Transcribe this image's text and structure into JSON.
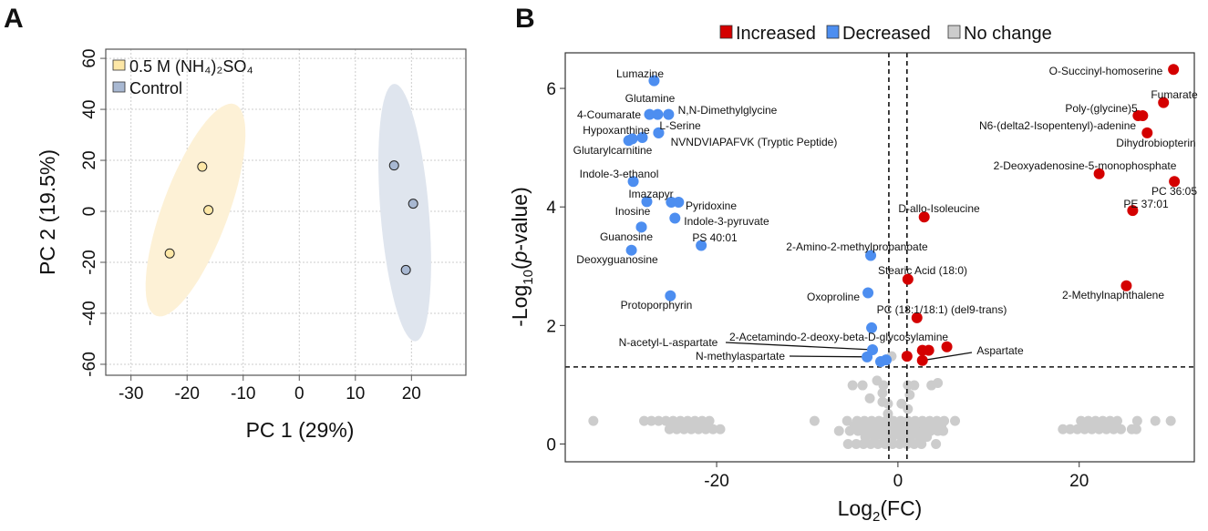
{
  "panels": {
    "a": "A",
    "b": "B"
  },
  "chart_data": [
    {
      "type": "scatter",
      "title": "",
      "xlabel": "PC 1 (29%)",
      "ylabel": "PC 2 (19.5%)",
      "xlim": [
        -34.5,
        29.7
      ],
      "ylim": [
        -64.3,
        63.6
      ],
      "xticks": [
        "-30",
        "-20",
        "-10",
        "0",
        "10",
        "20"
      ],
      "yticks": [
        "-60",
        "-40",
        "-20",
        "0",
        "20",
        "40",
        "60"
      ],
      "grid": true,
      "legend_position": "top-left",
      "series": [
        {
          "name": "0.5 M (NH₄)₂SO₄",
          "color": "#fde7a6",
          "ellipse_color": "#fdf1d6",
          "points": [
            [
              -17.3,
              17.5
            ],
            [
              -16.2,
              0.5
            ],
            [
              -23.1,
              -16.5
            ]
          ],
          "ellipse": {
            "center": [
              -18.5,
              0.5
            ],
            "major": [
              7.0,
              41.5
            ],
            "minor": [
              5.5,
              -4.5
            ]
          }
        },
        {
          "name": "Control",
          "color": "#a8b8d2",
          "ellipse_color": "#dfe5ee",
          "points": [
            [
              16.9,
              18.0
            ],
            [
              20.3,
              3.0
            ],
            [
              19.0,
              -23.0
            ]
          ],
          "ellipse": {
            "center": [
              18.8,
              -0.5
            ],
            "major": [
              -1.9,
              50.5
            ],
            "minor": [
              4.3,
              0.8
            ]
          }
        }
      ]
    },
    {
      "type": "scatter",
      "title": "",
      "xlabel_parts": [
        "Log",
        "2",
        "(FC)"
      ],
      "ylabel_parts": [
        "-Log",
        "10",
        "(",
        "p",
        "-value)"
      ],
      "xlim": [
        -36.7,
        32.7
      ],
      "ylim": [
        -0.3,
        6.6
      ],
      "xticks": [
        "-20",
        "0",
        "20"
      ],
      "yticks": [
        "0",
        "2",
        "4",
        "6"
      ],
      "grid": false,
      "thresholds": {
        "fc": [
          -1,
          1
        ],
        "neg_log10_p": 1.3
      },
      "legend_position": "top",
      "legend": [
        {
          "name": "Increased",
          "color": "#d40000"
        },
        {
          "name": "Decreased",
          "color": "#4d8ef0"
        },
        {
          "name": "No change",
          "color": "#cccccc"
        }
      ],
      "decreased": [
        {
          "x": -26.9,
          "y": 6.13,
          "label": "Lumazine"
        },
        {
          "x": -27.4,
          "y": 5.56,
          "label": "4-Coumarate"
        },
        {
          "x": -26.5,
          "y": 5.56,
          "label": "Glutamine"
        },
        {
          "x": -25.3,
          "y": 5.56,
          "label": "N,N-Dimethylglycine"
        },
        {
          "x": -26.4,
          "y": 5.25,
          "label": "L-Serine"
        },
        {
          "x": -28.2,
          "y": 5.17,
          "label": "Hypoxanthine"
        },
        {
          "x": -29.7,
          "y": 5.12,
          "label": "Glutarylcarnitine"
        },
        {
          "x": -29.3,
          "y": 5.15,
          "label": ""
        },
        {
          "x": -26.4,
          "y": 5.25,
          "label": "NVNDVIAPAFVK (Tryptic Peptide)"
        },
        {
          "x": -29.2,
          "y": 4.43,
          "label": "Indole-3-ethanol"
        },
        {
          "x": -27.7,
          "y": 4.09,
          "label": "Imazapyr"
        },
        {
          "x": -25.0,
          "y": 4.08,
          "label": ""
        },
        {
          "x": -24.2,
          "y": 4.08,
          "label": "Pyridoxine"
        },
        {
          "x": -24.6,
          "y": 3.81,
          "label": "Indole-3-pyruvate"
        },
        {
          "x": -28.3,
          "y": 3.66,
          "label": "Inosine"
        },
        {
          "x": -28.3,
          "y": 3.66,
          "label": "Guanosine"
        },
        {
          "x": -29.4,
          "y": 3.27,
          "label": "Deoxyguanosine"
        },
        {
          "x": -21.7,
          "y": 3.35,
          "label": "PS 40:01"
        },
        {
          "x": -25.1,
          "y": 2.5,
          "label": "Protoporphyrin"
        },
        {
          "x": -3.0,
          "y": 3.18,
          "label": "2-Amino-2-methylpropanoate"
        },
        {
          "x": -3.3,
          "y": 2.55,
          "label": "Oxoproline"
        },
        {
          "x": -2.9,
          "y": 1.96,
          "label": "2-Acetamindo-2-deoxy-beta-D-glycosylamine"
        },
        {
          "x": -2.8,
          "y": 1.59,
          "label": "N-acetyl-L-aspartate"
        },
        {
          "x": -3.4,
          "y": 1.47,
          "label": "N-methylaspartate"
        },
        {
          "x": -1.9,
          "y": 1.39,
          "label": ""
        },
        {
          "x": -1.3,
          "y": 1.42,
          "label": ""
        }
      ],
      "increased": [
        {
          "x": 30.4,
          "y": 6.32,
          "label": "O-Succinyl-homoserine"
        },
        {
          "x": 29.3,
          "y": 5.76,
          "label": "Fumarate"
        },
        {
          "x": 26.5,
          "y": 5.54,
          "label": "Poly-(glycine)5"
        },
        {
          "x": 27.0,
          "y": 5.54,
          "label": "N6-(delta2-Isopentenyl)-adenine"
        },
        {
          "x": 27.5,
          "y": 5.25,
          "label": "Dihydrobiopterin"
        },
        {
          "x": 22.2,
          "y": 4.56,
          "label": "2-Deoxyadenosine-5-monophosphate"
        },
        {
          "x": 30.5,
          "y": 4.43,
          "label": "PC 36:05"
        },
        {
          "x": 25.9,
          "y": 3.94,
          "label": "PE 37:01"
        },
        {
          "x": 2.9,
          "y": 3.83,
          "label": "D-allo-Isoleucine"
        },
        {
          "x": 1.1,
          "y": 2.78,
          "label": "Stearic Acid (18:0)"
        },
        {
          "x": 25.2,
          "y": 2.67,
          "label": "2-Methylnaphthalene"
        },
        {
          "x": 2.1,
          "y": 2.13,
          "label": "PC (18:1/18:1) (del9-trans)"
        },
        {
          "x": 1.0,
          "y": 1.48,
          "label": ""
        },
        {
          "x": 2.7,
          "y": 1.58,
          "label": ""
        },
        {
          "x": 3.4,
          "y": 1.58,
          "label": ""
        },
        {
          "x": 5.4,
          "y": 1.64,
          "label": ""
        },
        {
          "x": 2.7,
          "y": 1.41,
          "label": "Aspartate"
        }
      ],
      "no_change": [
        [
          -33.6,
          0.39
        ],
        [
          -28.0,
          0.39
        ],
        [
          -27.2,
          0.39
        ],
        [
          -26.4,
          0.39
        ],
        [
          -25.6,
          0.39
        ],
        [
          -24.8,
          0.39
        ],
        [
          -24.0,
          0.39
        ],
        [
          -23.2,
          0.39
        ],
        [
          -22.4,
          0.39
        ],
        [
          -21.6,
          0.39
        ],
        [
          -20.8,
          0.39
        ],
        [
          -25.2,
          0.25
        ],
        [
          -24.4,
          0.25
        ],
        [
          -23.6,
          0.25
        ],
        [
          -22.8,
          0.25
        ],
        [
          -22.0,
          0.25
        ],
        [
          -21.2,
          0.25
        ],
        [
          -20.4,
          0.25
        ],
        [
          -19.6,
          0.25
        ],
        [
          20.2,
          0.39
        ],
        [
          21.0,
          0.39
        ],
        [
          21.8,
          0.39
        ],
        [
          22.6,
          0.39
        ],
        [
          23.4,
          0.39
        ],
        [
          24.2,
          0.39
        ],
        [
          26.4,
          0.39
        ],
        [
          28.4,
          0.39
        ],
        [
          30.1,
          0.39
        ],
        [
          18.2,
          0.25
        ],
        [
          19.0,
          0.25
        ],
        [
          19.8,
          0.25
        ],
        [
          20.6,
          0.25
        ],
        [
          21.4,
          0.25
        ],
        [
          22.2,
          0.25
        ],
        [
          23.0,
          0.25
        ],
        [
          23.8,
          0.25
        ],
        [
          24.6,
          0.25
        ],
        [
          25.8,
          0.25
        ],
        [
          26.3,
          0.25
        ],
        [
          -9.2,
          0.39
        ],
        [
          -5.6,
          0.39
        ],
        [
          -4.5,
          0.39
        ],
        [
          -3.7,
          0.39
        ],
        [
          -2.9,
          0.39
        ],
        [
          -2.1,
          0.39
        ],
        [
          -1.3,
          0.39
        ],
        [
          -0.5,
          0.39
        ],
        [
          0.3,
          0.39
        ],
        [
          1.1,
          0.39
        ],
        [
          1.9,
          0.39
        ],
        [
          2.7,
          0.39
        ],
        [
          3.5,
          0.39
        ],
        [
          4.3,
          0.39
        ],
        [
          5.1,
          0.39
        ],
        [
          6.3,
          0.39
        ],
        [
          -4.8,
          0.3
        ],
        [
          -4.0,
          0.3
        ],
        [
          -3.2,
          0.3
        ],
        [
          -2.4,
          0.3
        ],
        [
          -1.6,
          0.3
        ],
        [
          -0.8,
          0.3
        ],
        [
          0.0,
          0.3
        ],
        [
          0.8,
          0.3
        ],
        [
          1.6,
          0.3
        ],
        [
          2.4,
          0.3
        ],
        [
          3.2,
          0.3
        ],
        [
          4.0,
          0.3
        ],
        [
          4.8,
          0.3
        ],
        [
          -6.5,
          0.22
        ],
        [
          -5.3,
          0.22
        ],
        [
          -4.4,
          0.22
        ],
        [
          -3.6,
          0.22
        ],
        [
          -2.8,
          0.22
        ],
        [
          -2.0,
          0.22
        ],
        [
          -1.2,
          0.22
        ],
        [
          -0.4,
          0.22
        ],
        [
          0.4,
          0.22
        ],
        [
          1.2,
          0.22
        ],
        [
          2.0,
          0.22
        ],
        [
          2.8,
          0.22
        ],
        [
          3.6,
          0.22
        ],
        [
          4.4,
          0.22
        ],
        [
          5.0,
          0.22
        ],
        [
          -3.6,
          0.12
        ],
        [
          -2.6,
          0.12
        ],
        [
          -1.6,
          0.12
        ],
        [
          -0.6,
          0.12
        ],
        [
          0.4,
          0.12
        ],
        [
          1.4,
          0.12
        ],
        [
          2.4,
          0.12
        ],
        [
          3.2,
          0.12
        ],
        [
          -5.5,
          0.0
        ],
        [
          -4.6,
          0.0
        ],
        [
          -3.8,
          0.0
        ],
        [
          -3.0,
          0.0
        ],
        [
          -2.2,
          0.0
        ],
        [
          -1.4,
          0.0
        ],
        [
          -0.6,
          0.0
        ],
        [
          0.2,
          0.0
        ],
        [
          1.0,
          0.0
        ],
        [
          1.8,
          0.0
        ],
        [
          2.6,
          0.0
        ],
        [
          4.2,
          0.0
        ],
        [
          -5.0,
          0.99
        ],
        [
          -3.9,
          0.99
        ],
        [
          -2.3,
          1.07
        ],
        [
          -1.6,
          0.99
        ],
        [
          -1.7,
          0.86
        ],
        [
          -3.1,
          0.77
        ],
        [
          -1.7,
          0.71
        ],
        [
          -1.1,
          0.68
        ],
        [
          0.4,
          0.68
        ],
        [
          1.3,
          0.83
        ],
        [
          1.1,
          0.99
        ],
        [
          1.8,
          0.99
        ],
        [
          3.7,
          0.99
        ],
        [
          4.4,
          1.03
        ],
        [
          1.1,
          0.59
        ],
        [
          -1.1,
          0.51
        ],
        [
          -0.7,
          1.48
        ]
      ]
    }
  ]
}
